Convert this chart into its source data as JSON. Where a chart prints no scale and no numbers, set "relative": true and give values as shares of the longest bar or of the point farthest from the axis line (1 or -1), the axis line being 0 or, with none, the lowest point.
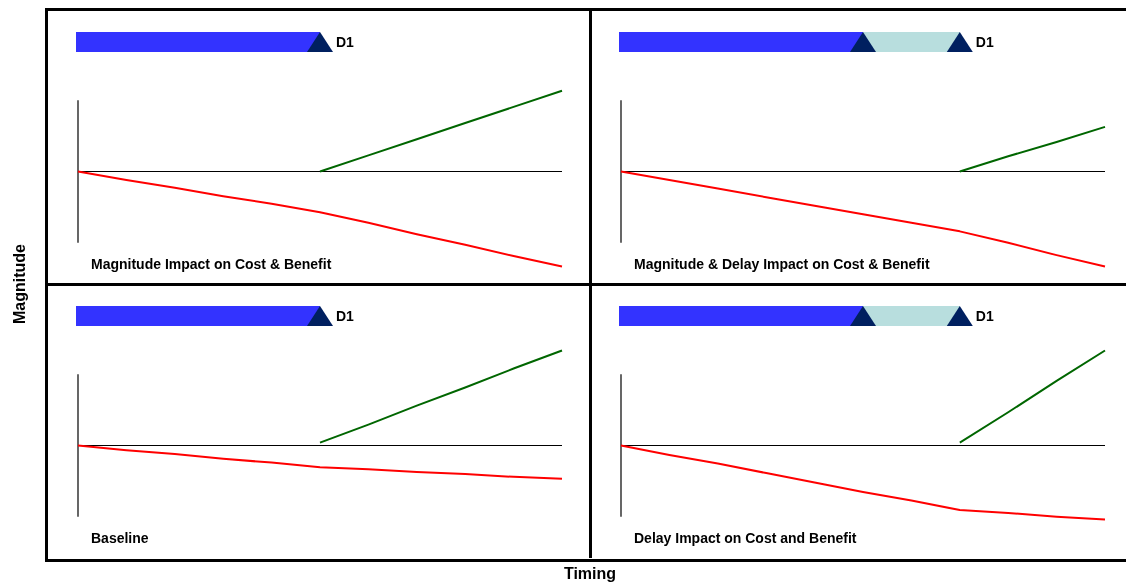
{
  "chart_data": [
    {
      "type": "line",
      "title": "Magnitude Impact on Cost & Benefit",
      "ylabel": "Magnitude",
      "relative": true,
      "marker": "none",
      "annotations": [
        "D1"
      ],
      "categories": [
        null,
        null,
        null,
        null,
        null,
        null,
        null,
        null,
        null,
        null,
        null
      ],
      "series": [
        {
          "color": "#ff0000",
          "values": [
            0,
            -0.09,
            -0.17,
            -0.26,
            -0.34,
            -0.43,
            -0.54,
            -0.66,
            -0.77,
            -0.89,
            -1
          ]
        },
        {
          "color": "#006600",
          "values": [
            null,
            null,
            null,
            null,
            null,
            0,
            0.17,
            0.34,
            0.51,
            0.68,
            0.85
          ]
        }
      ]
    },
    {
      "type": "line",
      "title": "Magnitude & Delay Impact on Cost & Benefit",
      "relative": true,
      "marker": "none",
      "annotations": [
        "D1"
      ],
      "categories": [
        null,
        null,
        null,
        null,
        null,
        null,
        null,
        null,
        null,
        null,
        null
      ],
      "series": [
        {
          "color": "#ff0000",
          "values": [
            0,
            -0.09,
            -0.18,
            -0.27,
            -0.36,
            -0.45,
            -0.54,
            -0.63,
            -0.75,
            -0.88,
            -1
          ]
        },
        {
          "color": "#006600",
          "values": [
            null,
            null,
            null,
            null,
            null,
            null,
            null,
            0,
            0.16,
            0.31,
            0.47
          ]
        }
      ]
    },
    {
      "type": "line",
      "title": "Baseline",
      "xlabel": "Timing",
      "relative": true,
      "marker": "none",
      "annotations": [
        "D1"
      ],
      "categories": [
        null,
        null,
        null,
        null,
        null,
        null,
        null,
        null,
        null,
        null,
        null
      ],
      "series": [
        {
          "color": "#ff0000",
          "values": [
            0,
            -0.05,
            -0.09,
            -0.14,
            -0.18,
            -0.23,
            -0.25,
            -0.28,
            -0.3,
            -0.33,
            -0.35
          ]
        },
        {
          "color": "#006600",
          "values": [
            null,
            null,
            null,
            null,
            null,
            0.03,
            0.22,
            0.42,
            0.61,
            0.81,
            1
          ]
        }
      ]
    },
    {
      "type": "line",
      "title": "Delay Impact on Cost and Benefit",
      "relative": true,
      "marker": "none",
      "annotations": [
        "D1"
      ],
      "categories": [
        null,
        null,
        null,
        null,
        null,
        null,
        null,
        null,
        null,
        null,
        null
      ],
      "series": [
        {
          "color": "#ff0000",
          "values": [
            0,
            -0.1,
            -0.19,
            -0.29,
            -0.39,
            -0.49,
            -0.58,
            -0.68,
            -0.71,
            -0.75,
            -0.78
          ]
        },
        {
          "color": "#006600",
          "values": [
            null,
            null,
            null,
            null,
            null,
            null,
            null,
            0.03,
            0.35,
            0.68,
            1
          ]
        }
      ]
    }
  ]
}
